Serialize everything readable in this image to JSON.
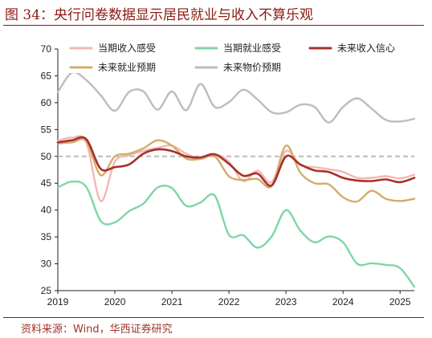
{
  "title": "图 34：央行问卷数据显示居民就业与收入不算乐观",
  "source": "资料来源：Wind，华西证券研究",
  "colors": {
    "title": "#8c1a12",
    "rule": "#8c1a12",
    "source": "#a0342a",
    "reference_line": "#bbbbbb"
  },
  "chart_data": {
    "type": "line",
    "x_tick_labels": [
      "2019",
      "2020",
      "2021",
      "2022",
      "2023",
      "2024",
      "2025"
    ],
    "xlim": [
      "2019Q1",
      "2025Q2"
    ],
    "ylim": [
      25,
      70
    ],
    "y_ticks": [
      25,
      30,
      35,
      40,
      45,
      50,
      55,
      60,
      65,
      70
    ],
    "reference_line": 50,
    "grid": false,
    "legend_position": "top",
    "x": [
      "2019Q1",
      "2019Q2",
      "2019Q3",
      "2019Q4",
      "2020Q1",
      "2020Q2",
      "2020Q3",
      "2020Q4",
      "2021Q1",
      "2021Q2",
      "2021Q3",
      "2021Q4",
      "2022Q1",
      "2022Q2",
      "2022Q3",
      "2022Q4",
      "2023Q1",
      "2023Q2",
      "2023Q3",
      "2023Q4",
      "2024Q1",
      "2024Q2",
      "2024Q3",
      "2024Q4",
      "2025Q1",
      "2025Q2"
    ],
    "series": [
      {
        "name": "当期收入感受",
        "color": "#f2b8b2",
        "values": [
          52.9,
          53.5,
          52.6,
          41.7,
          49.0,
          50.2,
          51.0,
          51.6,
          52.0,
          50.5,
          49.6,
          50.4,
          49.0,
          45.4,
          47.3,
          45.2,
          51.0,
          48.4,
          48.0,
          47.6,
          47.1,
          46.0,
          46.0,
          46.3,
          45.9,
          46.6
        ]
      },
      {
        "name": "当期就业感受",
        "color": "#7fd6a6",
        "values": [
          44.2,
          45.3,
          44.3,
          38.0,
          37.7,
          39.8,
          41.2,
          44.2,
          44.1,
          40.8,
          41.4,
          42.7,
          35.4,
          35.3,
          33.0,
          35.1,
          40.0,
          36.2,
          34.0,
          35.1,
          34.0,
          30.0,
          30.1,
          29.8,
          29.2,
          25.7
        ]
      },
      {
        "name": "未来收入信心",
        "color": "#a8312a",
        "values": [
          52.6,
          53.0,
          53.2,
          47.7,
          48.0,
          48.5,
          50.5,
          51.3,
          51.0,
          50.0,
          49.8,
          50.4,
          48.6,
          46.4,
          46.8,
          44.6,
          50.0,
          48.5,
          47.4,
          47.1,
          46.0,
          45.5,
          45.4,
          45.7,
          45.2,
          46.0
        ]
      },
      {
        "name": "未来就业预期",
        "color": "#d4ac6a",
        "values": [
          52.4,
          52.6,
          52.8,
          46.5,
          50.0,
          50.5,
          51.5,
          53.0,
          52.0,
          49.6,
          49.5,
          50.0,
          46.3,
          45.6,
          45.8,
          44.5,
          52.0,
          47.0,
          45.0,
          44.8,
          42.4,
          41.6,
          43.6,
          42.1,
          41.7,
          42.1
        ]
      },
      {
        "name": "未来物价预期",
        "color": "#bdbdbd",
        "values": [
          62.0,
          65.6,
          64.2,
          61.4,
          58.5,
          62.0,
          62.1,
          58.7,
          62.1,
          58.6,
          63.5,
          59.2,
          60.1,
          62.4,
          60.6,
          58.2,
          58.2,
          59.6,
          59.2,
          56.3,
          59.2,
          60.8,
          58.9,
          56.8,
          56.5,
          57.0
        ]
      }
    ]
  }
}
